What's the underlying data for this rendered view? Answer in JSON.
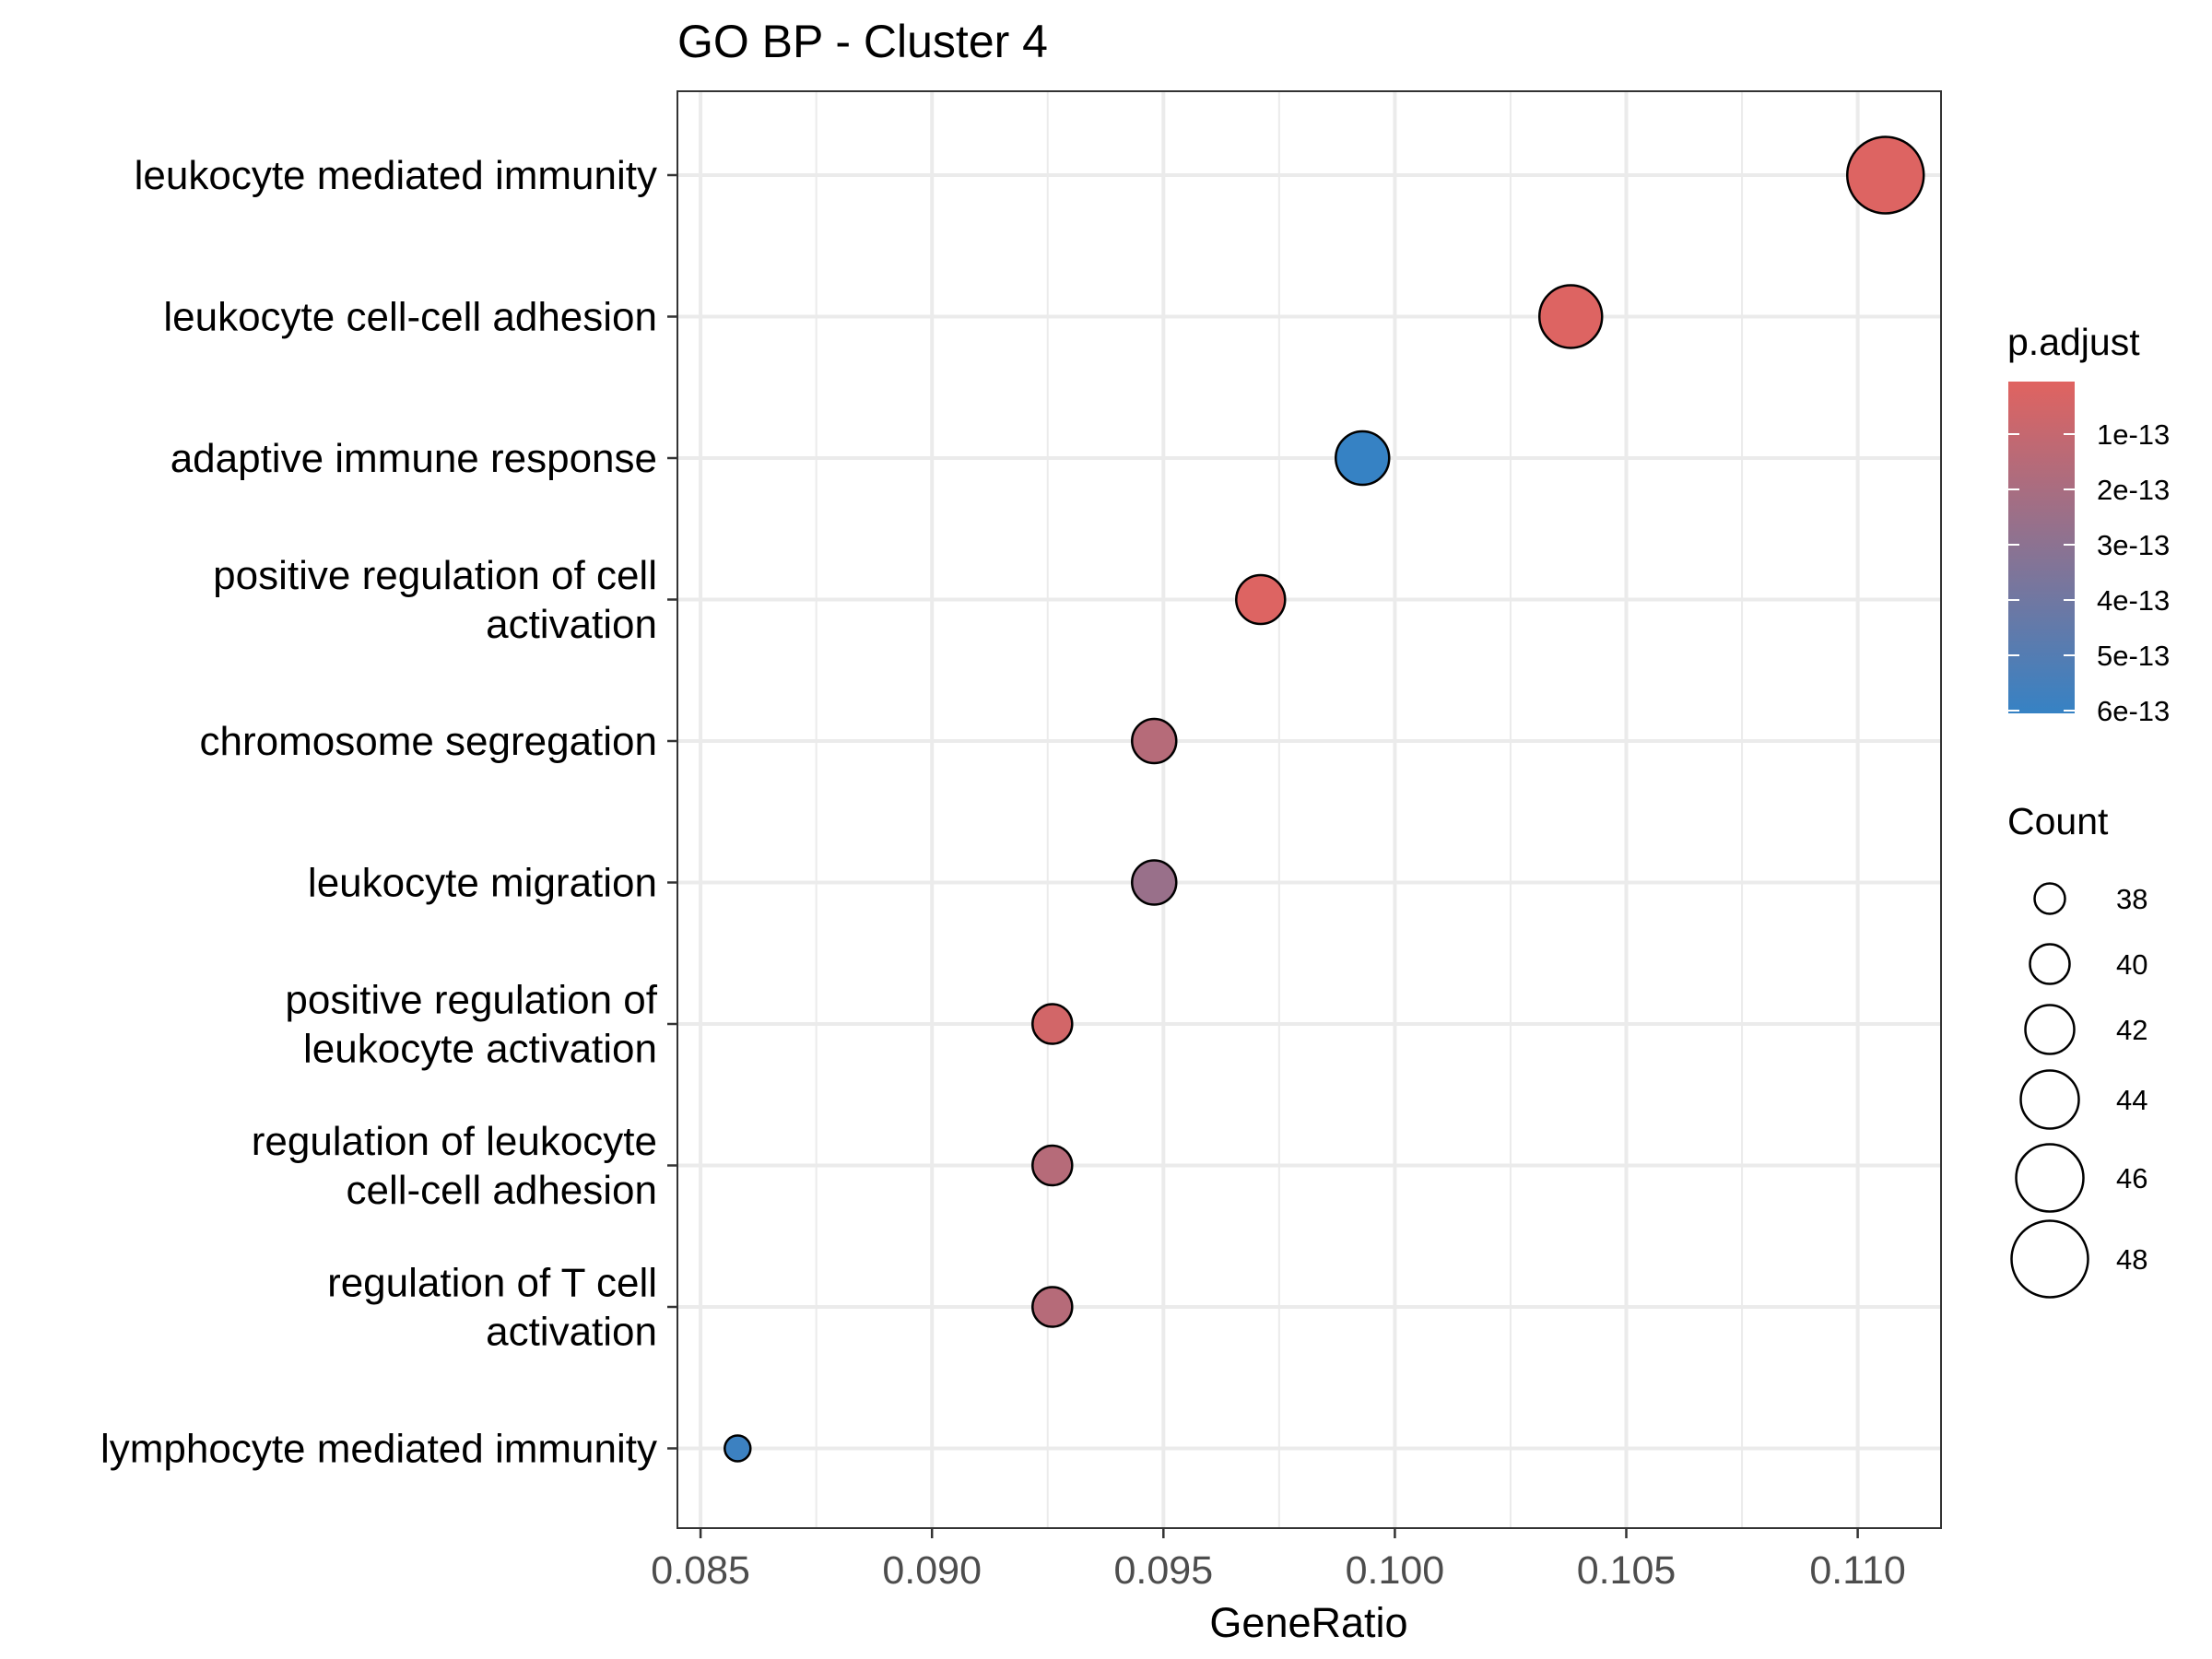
{
  "chart_data": {
    "type": "scatter",
    "title": "GO BP - Cluster 4",
    "xlabel": "GeneRatio",
    "ylabel": "",
    "xlim": [
      0.0845,
      0.1118
    ],
    "xticks": [
      0.085,
      0.09,
      0.095,
      0.1,
      0.105,
      0.11
    ],
    "xtick_labels": [
      "0.085",
      "0.090",
      "0.095",
      "0.100",
      "0.105",
      "0.110"
    ],
    "grid": true,
    "points": [
      {
        "label_lines": [
          "leukocyte mediated immunity"
        ],
        "x": 0.1106,
        "count": 48,
        "p_adjust": 1e-14
      },
      {
        "label_lines": [
          "leukocyte cell-cell adhesion"
        ],
        "x": 0.1038,
        "count": 45,
        "p_adjust": 1e-14
      },
      {
        "label_lines": [
          "adaptive immune response"
        ],
        "x": 0.0993,
        "count": 43,
        "p_adjust": 6e-13
      },
      {
        "label_lines": [
          "positive regulation of cell",
          "activation"
        ],
        "x": 0.0971,
        "count": 42,
        "p_adjust": 1e-14
      },
      {
        "label_lines": [
          "chromosome segregation"
        ],
        "x": 0.0948,
        "count": 41,
        "p_adjust": 1.5e-13
      },
      {
        "label_lines": [
          "leukocyte migration"
        ],
        "x": 0.0948,
        "count": 41,
        "p_adjust": 2.5e-13
      },
      {
        "label_lines": [
          "positive regulation of",
          "leukocyte activation"
        ],
        "x": 0.0926,
        "count": 40,
        "p_adjust": 5e-14
      },
      {
        "label_lines": [
          "regulation of leukocyte",
          "cell-cell adhesion"
        ],
        "x": 0.0926,
        "count": 40,
        "p_adjust": 1.5e-13
      },
      {
        "label_lines": [
          "regulation of T cell",
          "activation"
        ],
        "x": 0.0926,
        "count": 40,
        "p_adjust": 1.5e-13
      },
      {
        "label_lines": [
          "lymphocyte mediated immunity"
        ],
        "x": 0.0858,
        "count": 37,
        "p_adjust": 5.8e-13
      }
    ],
    "color_legend": {
      "title": "p.adjust",
      "low_color": "#e06360",
      "high_color": "#3682c4",
      "range": [
        0,
        6e-13
      ],
      "ticks": [
        1e-13,
        2e-13,
        3e-13,
        4e-13,
        5e-13,
        6e-13
      ],
      "tick_labels": [
        "1e-13",
        "2e-13",
        "3e-13",
        "4e-13",
        "5e-13",
        "6e-13"
      ]
    },
    "size_legend": {
      "title": "Count",
      "values": [
        38,
        40,
        42,
        44,
        46,
        48
      ],
      "labels": [
        "38",
        "40",
        "42",
        "44",
        "46",
        "48"
      ]
    }
  }
}
